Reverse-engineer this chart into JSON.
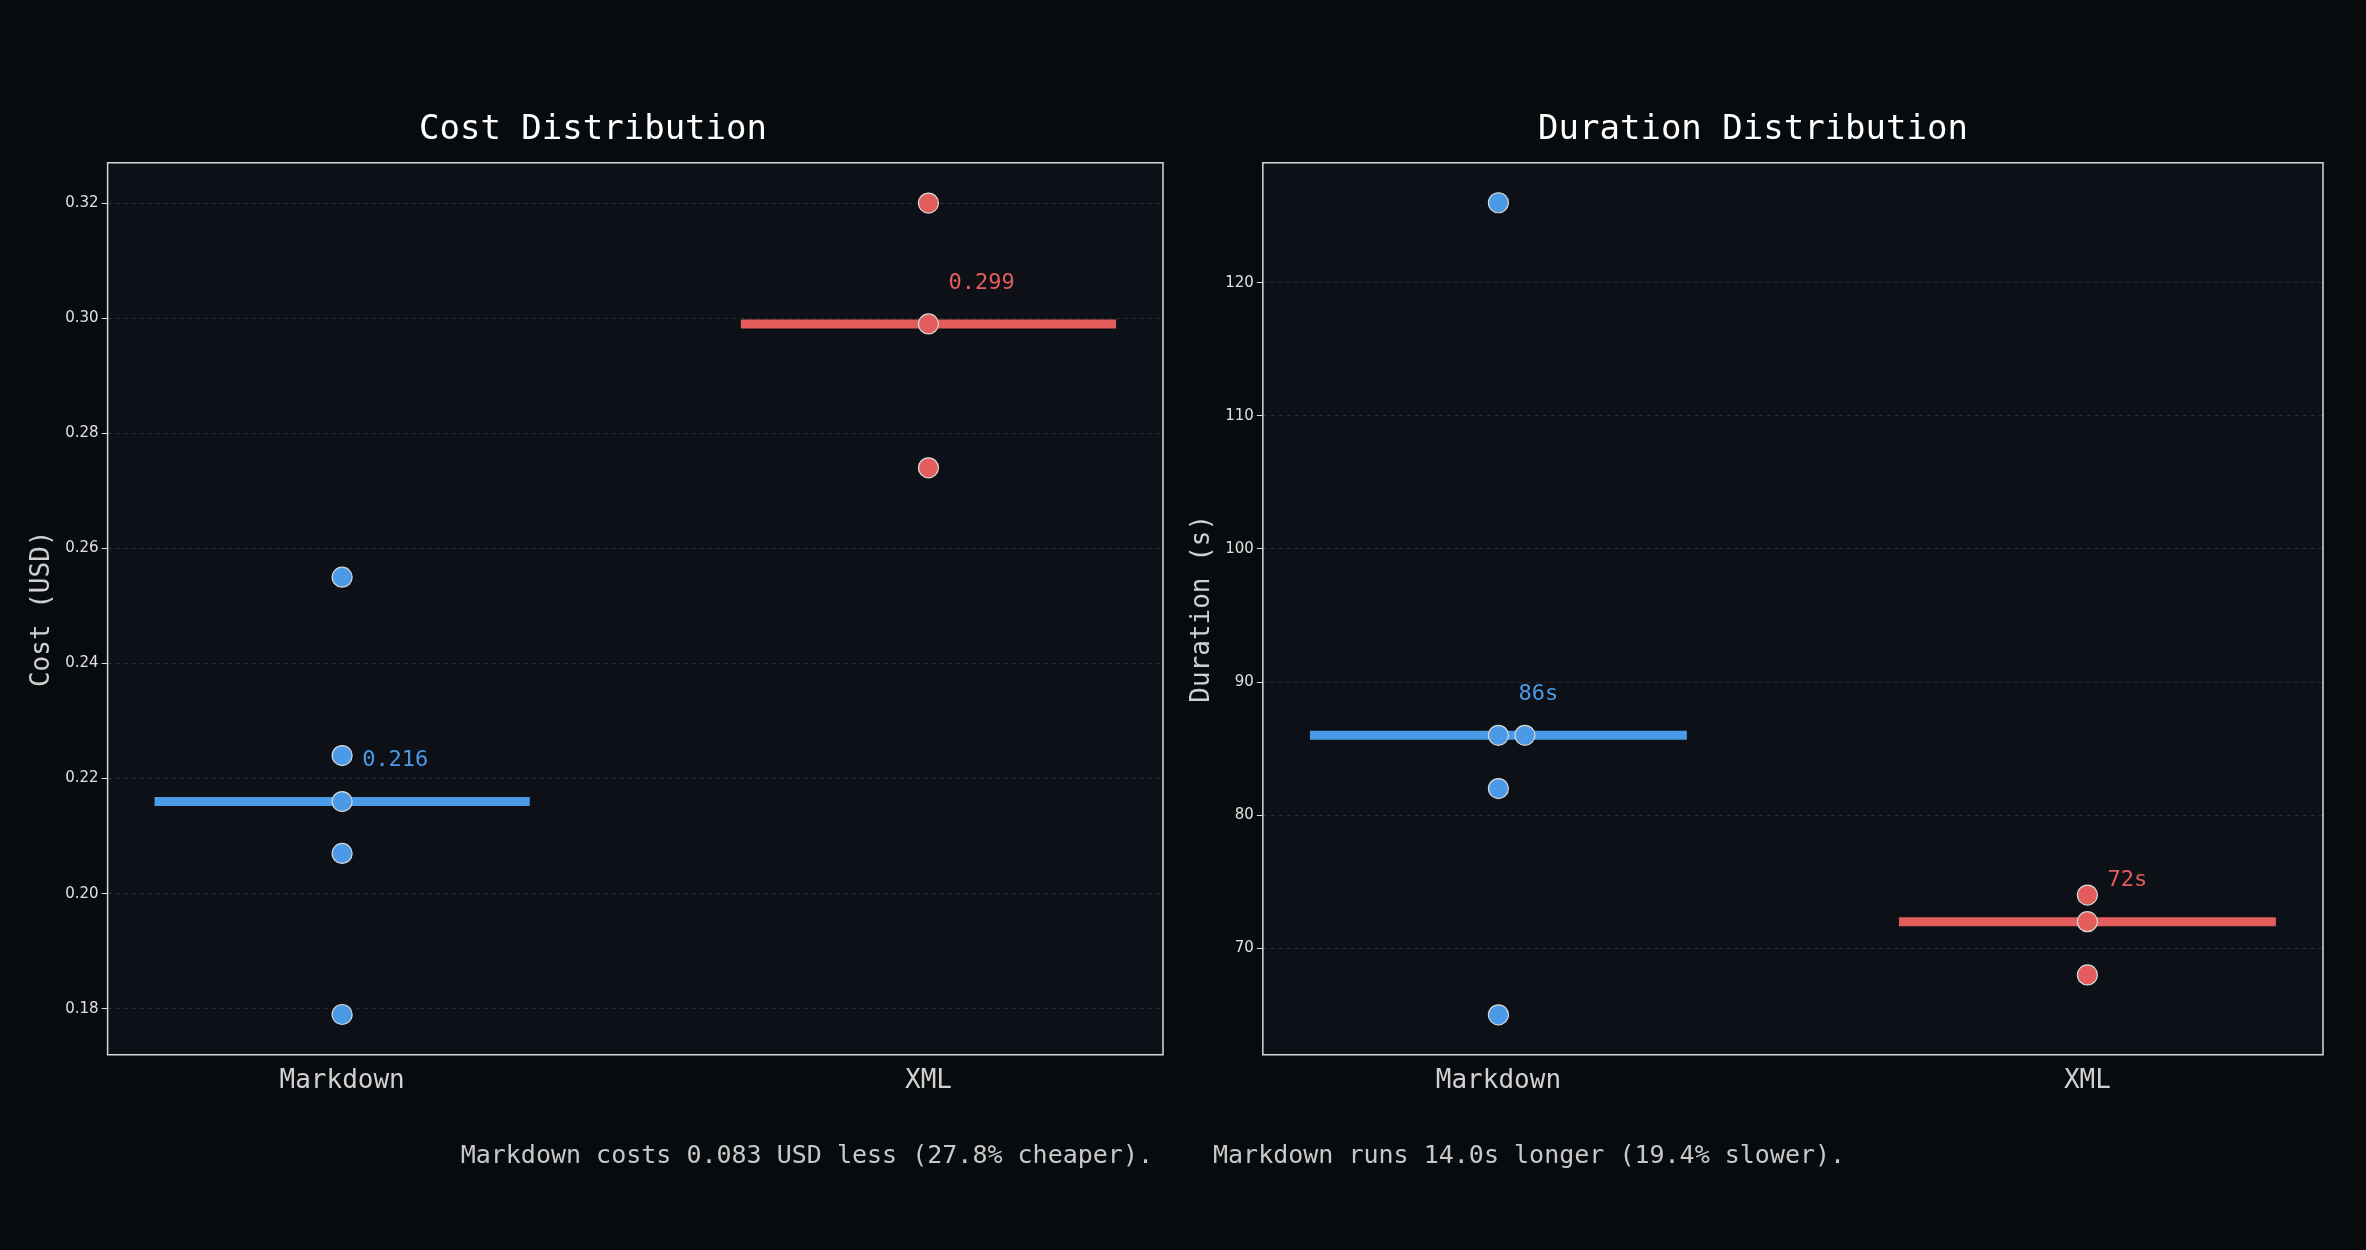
{
  "chart_data": [
    {
      "type": "scatter",
      "title": "Cost Distribution",
      "ylabel": "Cost (USD)",
      "categories": [
        "Markdown",
        "XML"
      ],
      "ylim": [
        0.172,
        0.327
      ],
      "yticks": [
        0.18,
        {
          "value": 0.2,
          "label": "0.20"
        },
        0.22,
        0.24,
        0.26,
        0.28,
        {
          "value": 0.3,
          "label": "0.30"
        },
        0.32
      ],
      "grid": "y",
      "marker": "circle",
      "legend": false,
      "series": [
        {
          "color": "#4a9ae8",
          "x": [
            "Markdown",
            "Markdown",
            "Markdown",
            "Markdown",
            "Markdown"
          ],
          "values": [
            0.255,
            0.224,
            0.216,
            0.207,
            0.179
          ]
        },
        {
          "color": "#e35d5d",
          "x": [
            "XML",
            "XML",
            "XML"
          ],
          "values": [
            0.32,
            0.299,
            0.274
          ]
        }
      ],
      "ref_lines": [
        {
          "axis": "y",
          "value": 0.216,
          "label": "0.216",
          "color": "#4a9ae8"
        },
        {
          "axis": "y",
          "value": 0.299,
          "label": "0.299",
          "color": "#e35d5d"
        }
      ],
      "annotations": [
        "Markdown costs 0.083 USD less (27.8% cheaper)."
      ]
    },
    {
      "type": "scatter",
      "title": "Duration Distribution",
      "ylabel": "Duration (s)",
      "categories": [
        "Markdown",
        "XML"
      ],
      "ylim": [
        62,
        129
      ],
      "yticks": [
        70,
        80,
        90,
        100,
        110,
        120
      ],
      "grid": "y",
      "marker": "circle",
      "legend": false,
      "series": [
        {
          "color": "#4a9ae8",
          "x": [
            "Markdown",
            "Markdown",
            "Markdown",
            "Markdown",
            "Markdown"
          ],
          "values": [
            126,
            86,
            86,
            82,
            65
          ]
        },
        {
          "color": "#e35d5d",
          "x": [
            "XML",
            "XML",
            "XML"
          ],
          "values": [
            74,
            72,
            68
          ]
        }
      ],
      "ref_lines": [
        {
          "axis": "y",
          "value": 86,
          "label": "86s",
          "color": "#4a9ae8"
        },
        {
          "axis": "y",
          "value": 72,
          "label": "72s",
          "color": "#e35d5d"
        }
      ],
      "annotations": [
        "Markdown runs 14.0s longer (19.4% slower)."
      ]
    }
  ]
}
